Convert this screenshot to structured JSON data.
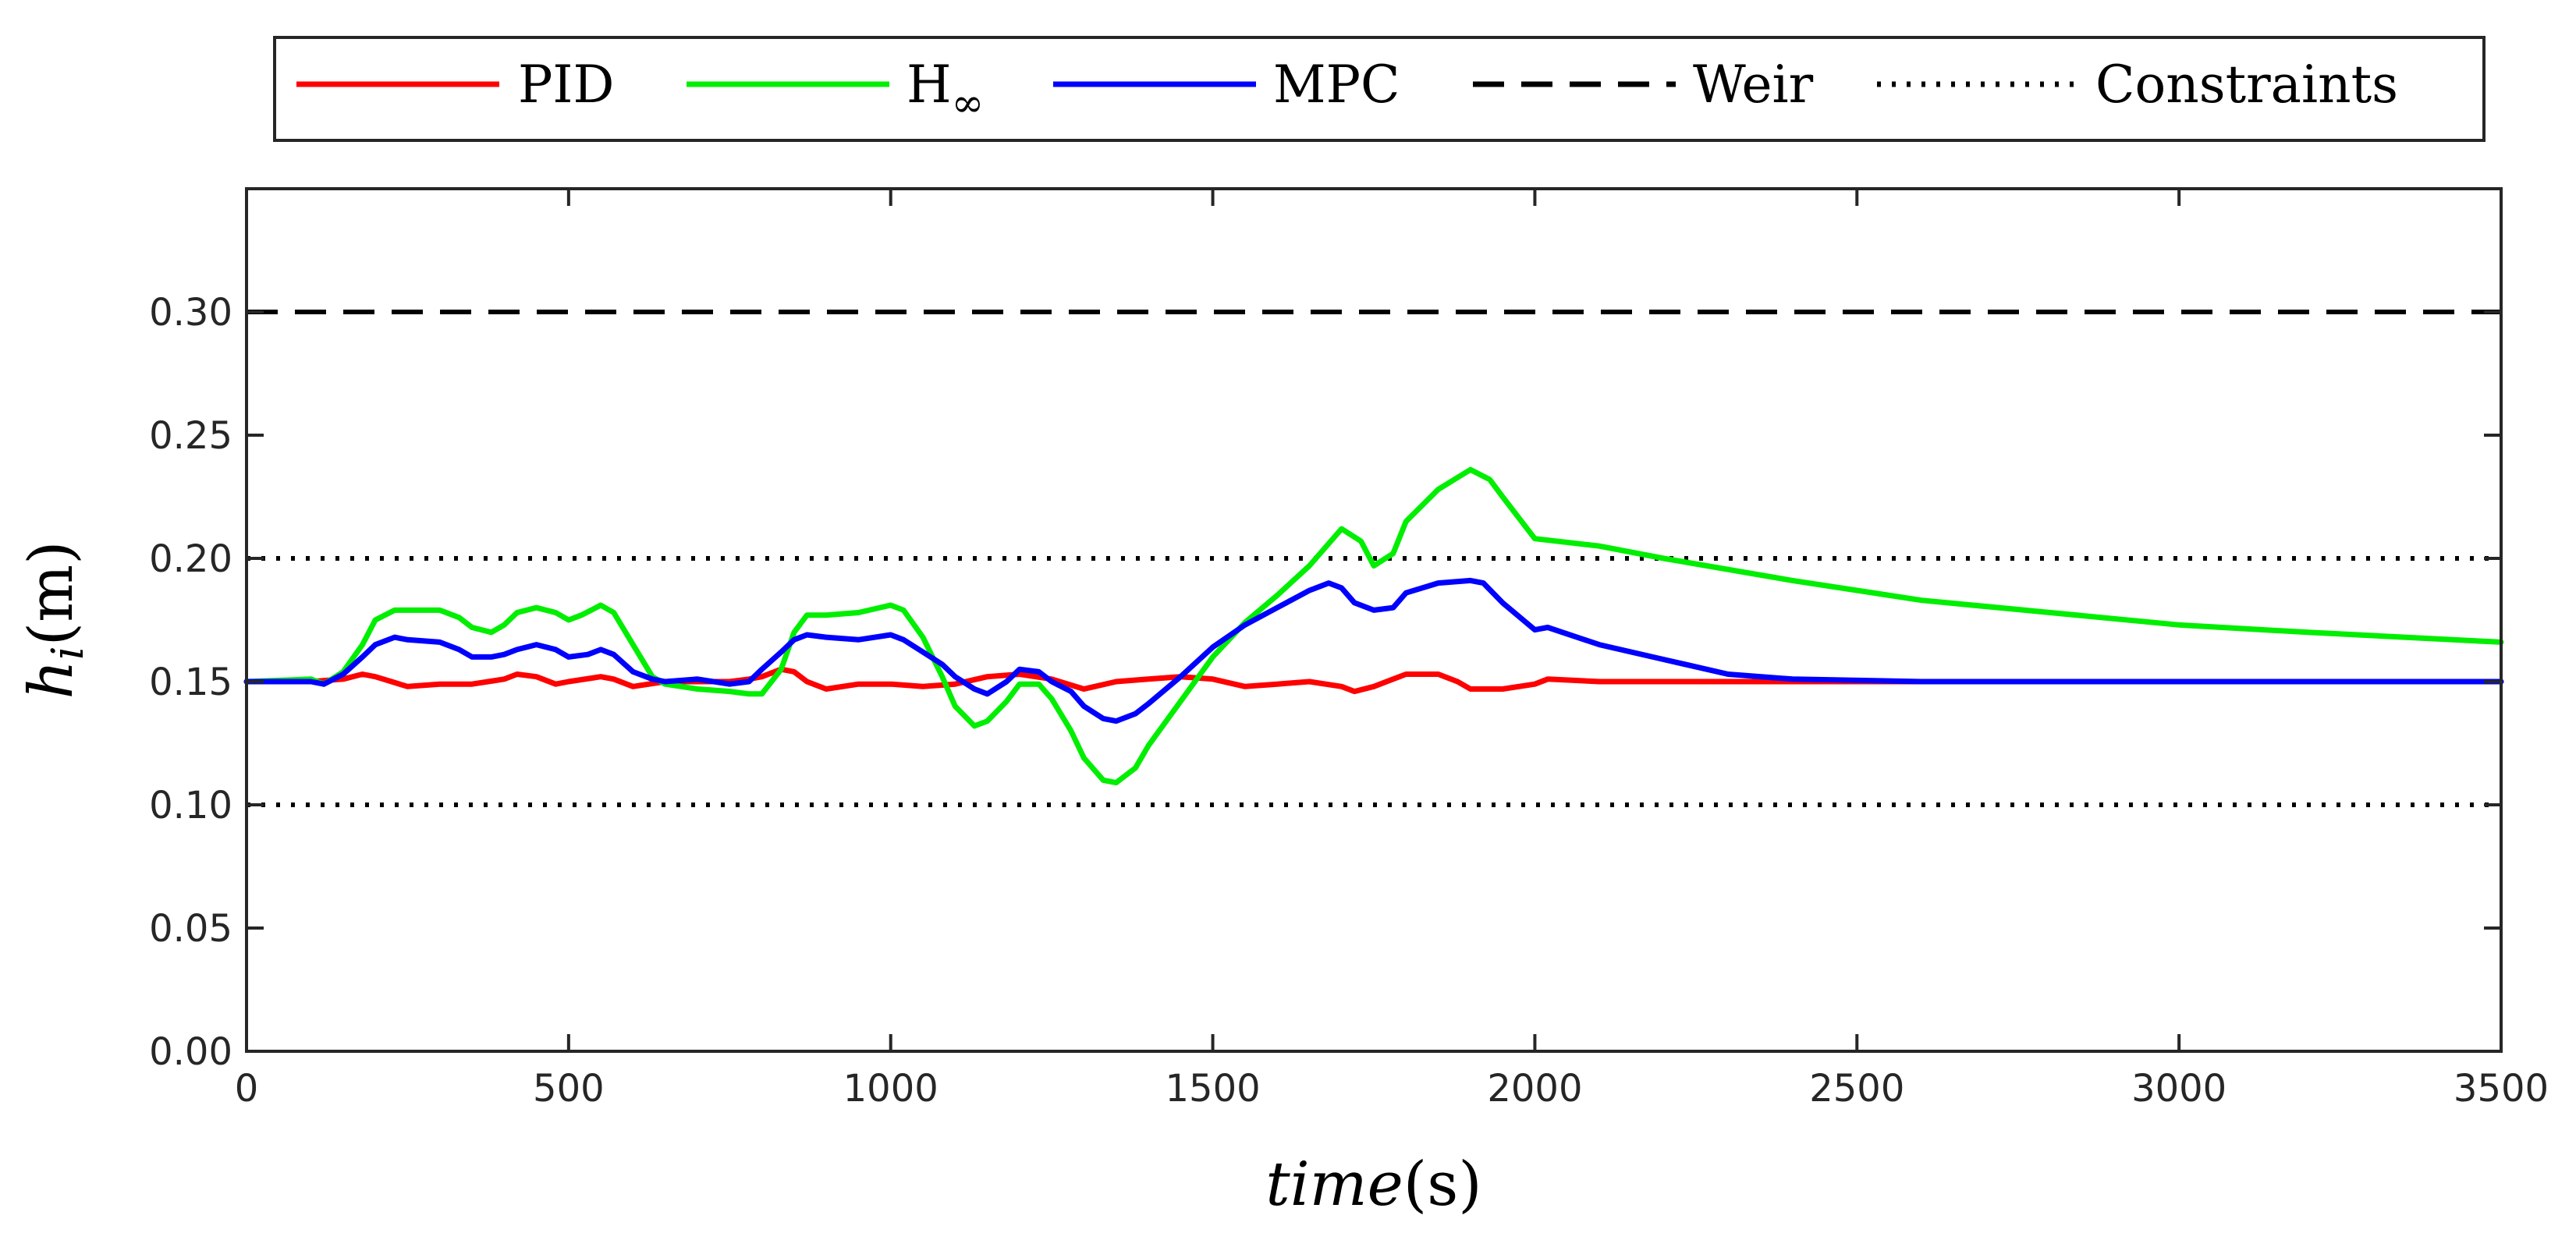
{
  "chart_data": {
    "type": "line",
    "title": "",
    "xlabel": "time",
    "xlabel_unit": "(s)",
    "ylabel": "h",
    "ylabel_sub": "i",
    "ylabel_unit": "(m)",
    "xlim": [
      0,
      3500
    ],
    "ylim": [
      0,
      0.35
    ],
    "xticks": [
      0,
      500,
      1000,
      1500,
      2000,
      2500,
      3000,
      3500
    ],
    "xtick_labels": [
      "0",
      "500",
      "1000",
      "1500",
      "2000",
      "2500",
      "3000",
      "3500"
    ],
    "yticks": [
      0,
      0.05,
      0.1,
      0.15,
      0.2,
      0.25,
      0.3
    ],
    "ytick_labels": [
      "0.00",
      "0.05",
      "0.10",
      "0.15",
      "0.20",
      "0.25",
      "0.30"
    ],
    "grid": false,
    "legend_position": "top-outside",
    "series": [
      {
        "name": "PID",
        "legend_label": "PID",
        "color": "#ff0000",
        "style": "solid",
        "x": [
          0,
          100,
          150,
          180,
          200,
          250,
          300,
          350,
          400,
          420,
          450,
          480,
          500,
          550,
          570,
          600,
          650,
          700,
          750,
          780,
          800,
          830,
          850,
          870,
          900,
          950,
          1000,
          1050,
          1100,
          1150,
          1200,
          1250,
          1300,
          1350,
          1400,
          1450,
          1500,
          1550,
          1600,
          1650,
          1700,
          1720,
          1750,
          1800,
          1850,
          1880,
          1900,
          1950,
          2000,
          2020,
          2100,
          2200,
          2400,
          2600,
          3000,
          3500
        ],
        "y": [
          0.15,
          0.15,
          0.151,
          0.153,
          0.152,
          0.148,
          0.149,
          0.149,
          0.151,
          0.153,
          0.152,
          0.149,
          0.15,
          0.152,
          0.151,
          0.148,
          0.15,
          0.15,
          0.15,
          0.151,
          0.152,
          0.155,
          0.154,
          0.15,
          0.147,
          0.149,
          0.149,
          0.148,
          0.149,
          0.152,
          0.153,
          0.151,
          0.147,
          0.15,
          0.151,
          0.152,
          0.151,
          0.148,
          0.149,
          0.15,
          0.148,
          0.146,
          0.148,
          0.153,
          0.153,
          0.15,
          0.147,
          0.147,
          0.149,
          0.151,
          0.15,
          0.15,
          0.15,
          0.15,
          0.15,
          0.15
        ]
      },
      {
        "name": "H-infinity",
        "legend_label": "H",
        "legend_label_sub": "∞",
        "color": "#00ee00",
        "style": "solid",
        "x": [
          0,
          100,
          120,
          150,
          180,
          200,
          230,
          250,
          300,
          330,
          350,
          380,
          400,
          420,
          450,
          480,
          500,
          520,
          550,
          570,
          600,
          630,
          650,
          700,
          750,
          780,
          800,
          830,
          850,
          870,
          900,
          950,
          1000,
          1020,
          1050,
          1080,
          1100,
          1130,
          1150,
          1180,
          1200,
          1230,
          1250,
          1280,
          1300,
          1330,
          1350,
          1380,
          1400,
          1450,
          1500,
          1550,
          1600,
          1650,
          1680,
          1700,
          1730,
          1750,
          1780,
          1800,
          1850,
          1900,
          1930,
          1950,
          2000,
          2100,
          2200,
          2400,
          2600,
          2800,
          3000,
          3200,
          3500
        ],
        "y": [
          0.15,
          0.151,
          0.149,
          0.154,
          0.165,
          0.175,
          0.179,
          0.179,
          0.179,
          0.176,
          0.172,
          0.17,
          0.173,
          0.178,
          0.18,
          0.178,
          0.175,
          0.177,
          0.181,
          0.178,
          0.165,
          0.152,
          0.149,
          0.147,
          0.146,
          0.145,
          0.145,
          0.155,
          0.17,
          0.177,
          0.177,
          0.178,
          0.181,
          0.179,
          0.168,
          0.152,
          0.14,
          0.132,
          0.134,
          0.142,
          0.149,
          0.149,
          0.143,
          0.13,
          0.119,
          0.11,
          0.109,
          0.115,
          0.124,
          0.142,
          0.16,
          0.174,
          0.185,
          0.197,
          0.206,
          0.212,
          0.207,
          0.197,
          0.202,
          0.215,
          0.228,
          0.236,
          0.232,
          0.225,
          0.208,
          0.205,
          0.2,
          0.191,
          0.183,
          0.178,
          0.173,
          0.17,
          0.166
        ]
      },
      {
        "name": "MPC",
        "legend_label": "MPC",
        "color": "#0000ff",
        "style": "solid",
        "x": [
          0,
          100,
          120,
          150,
          180,
          200,
          230,
          250,
          300,
          330,
          350,
          380,
          400,
          420,
          450,
          480,
          500,
          530,
          550,
          570,
          600,
          630,
          650,
          700,
          750,
          780,
          800,
          830,
          850,
          870,
          900,
          950,
          1000,
          1020,
          1050,
          1080,
          1100,
          1130,
          1150,
          1180,
          1200,
          1230,
          1250,
          1280,
          1300,
          1330,
          1350,
          1380,
          1400,
          1450,
          1500,
          1550,
          1600,
          1650,
          1680,
          1700,
          1720,
          1750,
          1780,
          1800,
          1850,
          1900,
          1920,
          1950,
          2000,
          2020,
          2100,
          2200,
          2300,
          2400,
          2600,
          3000,
          3500
        ],
        "y": [
          0.15,
          0.15,
          0.149,
          0.153,
          0.16,
          0.165,
          0.168,
          0.167,
          0.166,
          0.163,
          0.16,
          0.16,
          0.161,
          0.163,
          0.165,
          0.163,
          0.16,
          0.161,
          0.163,
          0.161,
          0.154,
          0.151,
          0.15,
          0.151,
          0.149,
          0.15,
          0.155,
          0.162,
          0.167,
          0.169,
          0.168,
          0.167,
          0.169,
          0.167,
          0.162,
          0.157,
          0.152,
          0.147,
          0.145,
          0.15,
          0.155,
          0.154,
          0.15,
          0.146,
          0.14,
          0.135,
          0.134,
          0.137,
          0.141,
          0.152,
          0.164,
          0.173,
          0.18,
          0.187,
          0.19,
          0.188,
          0.182,
          0.179,
          0.18,
          0.186,
          0.19,
          0.191,
          0.19,
          0.182,
          0.171,
          0.172,
          0.165,
          0.159,
          0.153,
          0.151,
          0.15,
          0.15,
          0.15
        ]
      }
    ],
    "reference_lines": [
      {
        "name": "Weir",
        "legend_label": "Weir",
        "color": "#000000",
        "style": "dashed",
        "y": 0.3
      },
      {
        "name": "Constraints",
        "legend_label": "Constraints",
        "color": "#000000",
        "style": "dotted",
        "y": [
          0.2,
          0.1
        ]
      }
    ]
  }
}
